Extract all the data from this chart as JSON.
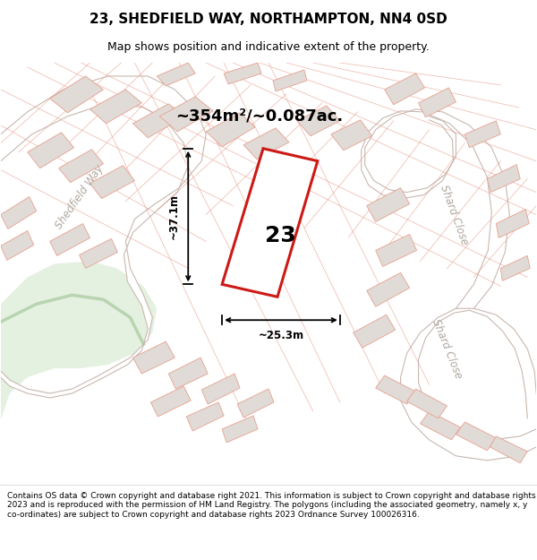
{
  "title": "23, SHEDFIELD WAY, NORTHAMPTON, NN4 0SD",
  "subtitle": "Map shows position and indicative extent of the property.",
  "area_text": "~354m²/~0.087ac.",
  "number_label": "23",
  "dim_width": "~25.3m",
  "dim_height": "~37.1m",
  "road_label_left": "Shedfield Way",
  "road_label_right": "Shard Close",
  "road_label_right2": "Shard Close",
  "footer": "Contains OS data © Crown copyright and database right 2021. This information is subject to Crown copyright and database rights 2023 and is reproduced with the permission of HM Land Registry. The polygons (including the associated geometry, namely x, y co-ordinates) are subject to Crown copyright and database rights 2023 Ordnance Survey 100026316.",
  "bg_color": "#f8f6f4",
  "map_bg": "#ffffff",
  "plot_color": "#ffffff",
  "plot_border_color": "#cc1a16",
  "road_color": "#ffffff",
  "road_edge_color": "#c8b8b0",
  "neighbor_color": "#e0dbd6",
  "neighbor_border": "#e8a090",
  "boundary_color": "#e8a090",
  "green_area_color": "#d4e8cc",
  "title_fontsize": 11,
  "subtitle_fontsize": 9,
  "footer_fontsize": 6.5,
  "road_label_color": "#b0a8a0",
  "dim_label_fontsize": 8.5
}
